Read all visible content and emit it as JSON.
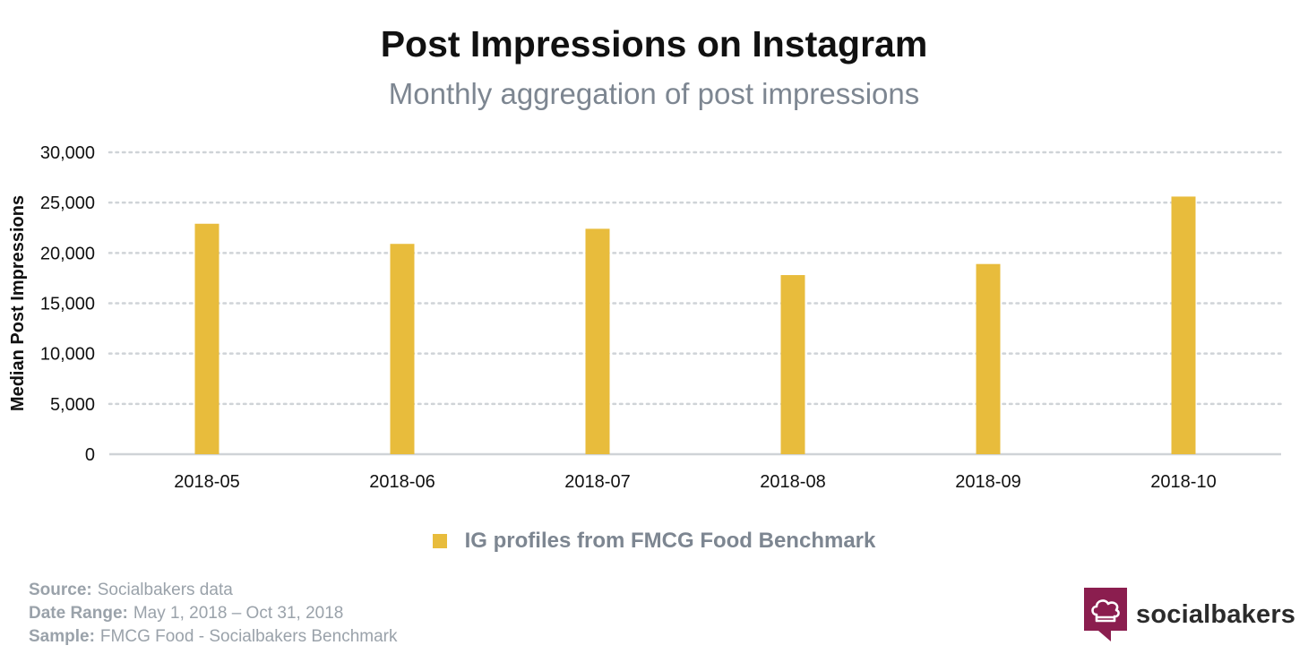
{
  "header": {
    "title": "Post Impressions on Instagram",
    "subtitle": "Monthly aggregation of post impressions"
  },
  "chart_data": {
    "type": "bar",
    "title": "Post Impressions on Instagram",
    "subtitle": "Monthly aggregation of post impressions",
    "xlabel": "",
    "ylabel": "Median Post Impressions",
    "categories": [
      "2018-05",
      "2018-06",
      "2018-07",
      "2018-08",
      "2018-09",
      "2018-10"
    ],
    "series": [
      {
        "name": "IG profiles from FMCG Food Benchmark",
        "values": [
          22900,
          20900,
          22400,
          17800,
          18900,
          25600
        ],
        "color": "#e8bc3c"
      }
    ],
    "ylim": [
      0,
      30000
    ],
    "yticks": [
      0,
      5000,
      10000,
      15000,
      20000,
      25000,
      30000
    ],
    "ytick_labels": [
      "0",
      "5,000",
      "10,000",
      "15,000",
      "20,000",
      "25,000",
      "30,000"
    ],
    "grid": true,
    "legend_position": "bottom-center"
  },
  "legend": {
    "label": "IG profiles from FMCG Food Benchmark",
    "color": "#e8bc3c"
  },
  "footer": {
    "source_key": "Source:",
    "source_value": "Socialbakers data",
    "range_key": "Date Range:",
    "range_value": "May 1, 2018  – Oct 31, 2018",
    "sample_key": "Sample:",
    "sample_value": "FMCG Food - Socialbakers Benchmark"
  },
  "logo": {
    "text": "socialbakers",
    "icon": "chef-hat-icon",
    "color": "#8b1e4f"
  }
}
